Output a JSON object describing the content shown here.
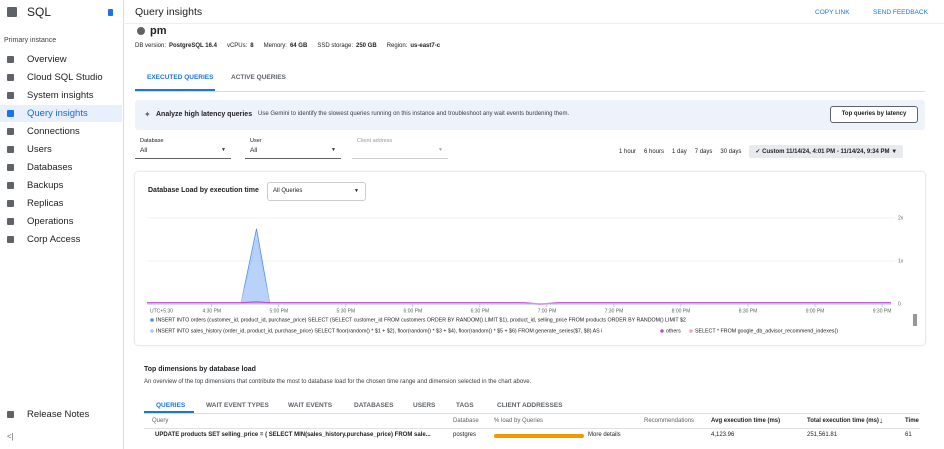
{
  "sidebar": {
    "title": "SQL",
    "section": "Primary instance",
    "nav": [
      "Overview",
      "Cloud SQL Studio",
      "System insights",
      "Query insights",
      "Connections",
      "Users",
      "Databases",
      "Backups",
      "Replicas",
      "Operations",
      "Corp Access"
    ],
    "footer": "Release Notes"
  },
  "header": {
    "title": "Query insights",
    "actions": [
      "COPY LINK",
      "SEND FEEDBACK"
    ]
  },
  "instance": {
    "name": "pm",
    "details": [
      {
        "label": "DB version:",
        "value": "PostgreSQL 16.4"
      },
      {
        "label": "vCPUs:",
        "value": "8"
      },
      {
        "label": "Memory:",
        "value": "64 GB"
      },
      {
        "label": "SSD storage:",
        "value": "250 GB"
      },
      {
        "label": "Region:",
        "value": "us-east7-c"
      }
    ]
  },
  "tabs": [
    "EXECUTED QUERIES",
    "ACTIVE QUERIES"
  ],
  "banner": {
    "title": "Analyze high latency queries",
    "text": "Use Gemini to identify the slowest queries running on this instance and troubleshoot any wait events burdening them.",
    "button": "Top queries by latency"
  },
  "filters": [
    {
      "label": "Database",
      "value": "All"
    },
    {
      "label": "User",
      "value": "All"
    },
    {
      "label": "Client address"
    }
  ],
  "time_range": {
    "options": [
      "1 hour",
      "6 hours",
      "1 day",
      "7 days",
      "30 days"
    ],
    "custom": "Custom 11/14/24, 4:01 PM - 11/14/24, 9:34 PM"
  },
  "chart_data": {
    "type": "line",
    "title": "Database Load by execution time",
    "filter": "All Queries",
    "timezone": "UTC+5:30",
    "x": [
      961,
      1003,
      1010,
      1016,
      1130,
      1137,
      1145,
      1294
    ],
    "xlim": [
      961,
      1294
    ],
    "xticks": [
      {
        "value": 990,
        "label": "4:30 PM"
      },
      {
        "value": 1020,
        "label": "5:00 PM"
      },
      {
        "value": 1050,
        "label": "5:30 PM"
      },
      {
        "value": 1080,
        "label": "6:00 PM"
      },
      {
        "value": 1110,
        "label": "6:30 PM"
      },
      {
        "value": 1140,
        "label": "7:00 PM"
      },
      {
        "value": 1170,
        "label": "7:30 PM"
      },
      {
        "value": 1200,
        "label": "8:00 PM"
      },
      {
        "value": 1230,
        "label": "8:30 PM"
      },
      {
        "value": 1260,
        "label": "9:00 PM"
      },
      {
        "value": 1290,
        "label": "9:30 PM"
      }
    ],
    "ylim": [
      0,
      2.05
    ],
    "yticks": [
      0,
      {
        "value": 1,
        "label": "1x"
      },
      {
        "value": 2,
        "label": "2x"
      }
    ],
    "series": [
      {
        "name": "INSERT INTO orders (customer_id, product_id, purchase_price) SELECT (SELECT customer_id FROM customers ORDER BY RANDOM() LIMIT $1), product_id, selling_price FROM products ORDER BY RANDOM() LIMIT $2",
        "color": "#4c8df6",
        "values": [
          0,
          0,
          1.75,
          0,
          0,
          0,
          0,
          0
        ]
      },
      {
        "name": "INSERT INTO sales_history (order_id, product_id, purchase_price) SELECT floor(random() * $1 + $2), floor(random() * $3 + $4), floor(random() * $5 + $6) FROM generate_series($7, $8) AS i",
        "color": "#a9c8f5",
        "values": [
          0,
          0,
          1.5,
          0,
          0,
          0,
          0,
          0
        ]
      },
      {
        "name": "others",
        "color": "#c44bd0",
        "values": [
          0.03,
          0.03,
          0.05,
          0.03,
          0.03,
          0,
          0.03,
          0.03
        ]
      },
      {
        "name": "SELECT * FROM google_db_advisor_recommend_indexes()",
        "color": "#f2a6b8",
        "values": [
          0.01,
          0.01,
          0.01,
          0.01,
          0.01,
          0.01,
          0.01,
          0.01
        ]
      }
    ]
  },
  "dimensions": {
    "title": "Top dimensions by database load",
    "subtitle": "An overview of the top dimensions that contribute the most to database load for the chosen time range and dimension selected in the chart above.",
    "tabs": [
      "QUERIES",
      "WAIT EVENT TYPES",
      "WAIT EVENTS",
      "DATABASES",
      "USERS",
      "TAGS",
      "CLIENT ADDRESSES"
    ],
    "columns": [
      "Query",
      "Database",
      "% load by Queries",
      "Recommendations",
      "Avg execution time (ms)",
      "Total execution time (ms)",
      "Time"
    ],
    "rows": [
      [
        "UPDATE products SET selling_price = ( SELECT MIN(sales_history.purchase_price) FROM sale...",
        "postgres",
        "More details",
        "4,123.96",
        "251,561.81",
        "61"
      ]
    ]
  }
}
